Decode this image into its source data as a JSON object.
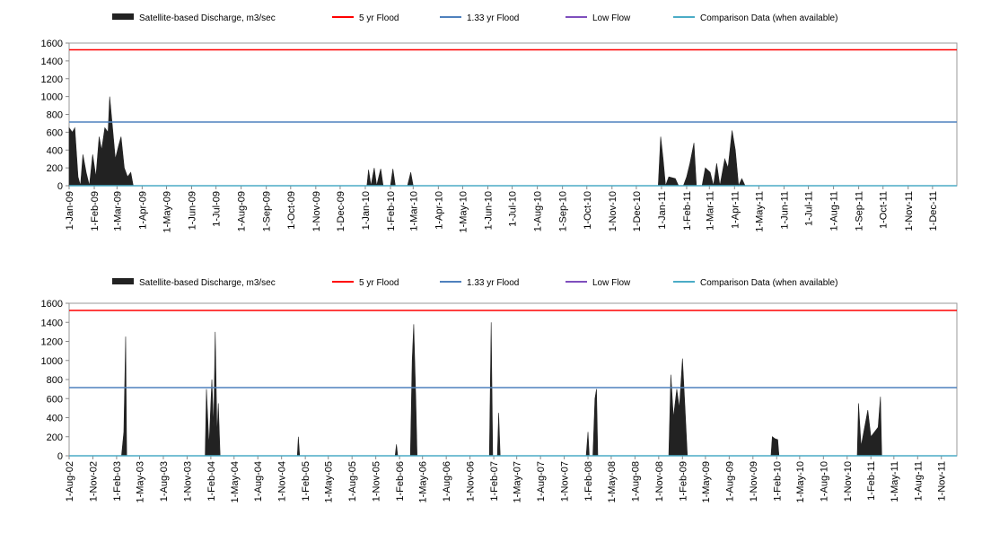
{
  "chart_data": [
    {
      "type": "area",
      "series": [
        {
          "name": "Satellite-based Discharge, m3/sec",
          "color": "#222222",
          "x": [
            "2009-01-01",
            "2009-01-05",
            "2009-01-08",
            "2009-01-12",
            "2009-01-15",
            "2009-01-18",
            "2009-01-22",
            "2009-01-26",
            "2009-01-30",
            "2009-02-03",
            "2009-02-07",
            "2009-02-10",
            "2009-02-14",
            "2009-02-18",
            "2009-02-20",
            "2009-02-23",
            "2009-02-27",
            "2009-03-03",
            "2009-03-06",
            "2009-03-10",
            "2009-03-14",
            "2009-03-18",
            "2009-03-21",
            "2010-01-03",
            "2010-01-05",
            "2010-01-08",
            "2010-01-12",
            "2010-01-15",
            "2010-01-20",
            "2010-01-23",
            "2010-02-01",
            "2010-02-04",
            "2010-02-07",
            "2010-02-22",
            "2010-02-26",
            "2010-03-01",
            "2010-12-28",
            "2010-12-31",
            "2011-01-03",
            "2011-01-06",
            "2011-01-10",
            "2011-01-18",
            "2011-01-22",
            "2011-01-28",
            "2011-02-01",
            "2011-02-05",
            "2011-02-10",
            "2011-02-13",
            "2011-02-20",
            "2011-02-24",
            "2011-03-02",
            "2011-03-06",
            "2011-03-10",
            "2011-03-14",
            "2011-03-20",
            "2011-03-24",
            "2011-03-29",
            "2011-04-02",
            "2011-04-06",
            "2011-04-10",
            "2011-04-14"
          ],
          "values": [
            650,
            600,
            650,
            100,
            0,
            350,
            150,
            0,
            350,
            100,
            550,
            400,
            650,
            600,
            1000,
            700,
            300,
            450,
            550,
            200,
            100,
            150,
            0,
            0,
            180,
            0,
            200,
            0,
            190,
            0,
            0,
            190,
            0,
            0,
            150,
            0,
            0,
            550,
            300,
            0,
            100,
            80,
            0,
            0,
            100,
            250,
            480,
            0,
            0,
            200,
            150,
            0,
            250,
            0,
            300,
            200,
            620,
            400,
            0,
            80,
            0
          ]
        },
        {
          "name": "5 yr Flood",
          "color": "#ff0000",
          "value": 1525
        },
        {
          "name": "1.33 yr Flood",
          "color": "#4f81bd",
          "value": 715
        },
        {
          "name": "Low Flow",
          "color": "#7f4fbd"
        },
        {
          "name": "Comparison Data (when available)",
          "color": "#4bacc6",
          "value": 0
        }
      ],
      "xlim": [
        "2009-01-01",
        "2011-12-31"
      ],
      "xticks": [
        {
          "value": "2009-01-01",
          "label": "1-Jan-09"
        },
        {
          "value": "2009-02-01",
          "label": "1-Feb-09"
        },
        {
          "value": "2009-03-01",
          "label": "1-Mar-09"
        },
        {
          "value": "2009-04-01",
          "label": "1-Apr-09"
        },
        {
          "value": "2009-05-01",
          "label": "1-May-09"
        },
        {
          "value": "2009-06-01",
          "label": "1-Jun-09"
        },
        {
          "value": "2009-07-01",
          "label": "1-Jul-09"
        },
        {
          "value": "2009-08-01",
          "label": "1-Aug-09"
        },
        {
          "value": "2009-09-01",
          "label": "1-Sep-09"
        },
        {
          "value": "2009-10-01",
          "label": "1-Oct-09"
        },
        {
          "value": "2009-11-01",
          "label": "1-Nov-09"
        },
        {
          "value": "2009-12-01",
          "label": "1-Dec-09"
        },
        {
          "value": "2010-01-01",
          "label": "1-Jan-10"
        },
        {
          "value": "2010-02-01",
          "label": "1-Feb-10"
        },
        {
          "value": "2010-03-01",
          "label": "1-Mar-10"
        },
        {
          "value": "2010-04-01",
          "label": "1-Apr-10"
        },
        {
          "value": "2010-05-01",
          "label": "1-May-10"
        },
        {
          "value": "2010-06-01",
          "label": "1-Jun-10"
        },
        {
          "value": "2010-07-01",
          "label": "1-Jul-10"
        },
        {
          "value": "2010-08-01",
          "label": "1-Aug-10"
        },
        {
          "value": "2010-09-01",
          "label": "1-Sep-10"
        },
        {
          "value": "2010-10-01",
          "label": "1-Oct-10"
        },
        {
          "value": "2010-11-01",
          "label": "1-Nov-10"
        },
        {
          "value": "2010-12-01",
          "label": "1-Dec-10"
        },
        {
          "value": "2011-01-01",
          "label": "1-Jan-11"
        },
        {
          "value": "2011-02-01",
          "label": "1-Feb-11"
        },
        {
          "value": "2011-03-01",
          "label": "1-Mar-11"
        },
        {
          "value": "2011-04-01",
          "label": "1-Apr-11"
        },
        {
          "value": "2011-05-01",
          "label": "1-May-11"
        },
        {
          "value": "2011-06-01",
          "label": "1-Jun-11"
        },
        {
          "value": "2011-07-01",
          "label": "1-Jul-11"
        },
        {
          "value": "2011-08-01",
          "label": "1-Aug-11"
        },
        {
          "value": "2011-09-01",
          "label": "1-Sep-11"
        },
        {
          "value": "2011-10-01",
          "label": "1-Oct-11"
        },
        {
          "value": "2011-11-01",
          "label": "1-Nov-11"
        },
        {
          "value": "2011-12-01",
          "label": "1-Dec-11"
        }
      ],
      "ylim": [
        0,
        1600
      ],
      "yticks": [
        0,
        200,
        400,
        600,
        800,
        1000,
        1200,
        1400,
        1600
      ]
    },
    {
      "type": "area",
      "series": [
        {
          "name": "Satellite-based Discharge, m3/sec",
          "color": "#222222",
          "x": [
            "2002-08-01",
            "2003-02-20",
            "2003-03-01",
            "2003-03-08",
            "2003-03-12",
            "2004-01-10",
            "2004-01-15",
            "2004-01-25",
            "2004-02-05",
            "2004-02-12",
            "2004-02-18",
            "2004-02-25",
            "2004-03-01",
            "2004-03-08",
            "2005-01-01",
            "2005-01-05",
            "2005-01-10",
            "2006-01-15",
            "2006-01-20",
            "2006-01-25",
            "2006-03-15",
            "2006-03-22",
            "2006-03-28",
            "2006-04-05",
            "2006-04-10",
            "2007-01-15",
            "2007-01-22",
            "2007-01-28",
            "2007-02-15",
            "2007-02-20",
            "2007-02-26",
            "2008-01-25",
            "2008-02-01",
            "2008-02-06",
            "2008-02-20",
            "2008-02-28",
            "2008-03-05",
            "2008-03-10",
            "2008-12-10",
            "2008-12-18",
            "2008-12-28",
            "2009-01-10",
            "2009-01-20",
            "2009-02-01",
            "2009-02-10",
            "2009-02-20",
            "2010-01-10",
            "2010-01-15",
            "2010-01-25",
            "2010-02-05",
            "2010-02-10",
            "2010-12-10",
            "2010-12-15",
            "2010-12-25",
            "2011-01-20",
            "2011-02-01",
            "2011-02-15",
            "2011-03-01",
            "2011-03-10",
            "2011-03-15",
            "2011-12-31"
          ],
          "values": [
            0,
            0,
            250,
            1250,
            0,
            0,
            700,
            100,
            800,
            300,
            1300,
            200,
            550,
            0,
            0,
            200,
            0,
            0,
            120,
            0,
            0,
            1000,
            1380,
            600,
            0,
            0,
            1400,
            0,
            0,
            450,
            0,
            0,
            250,
            0,
            0,
            600,
            700,
            0,
            0,
            850,
            400,
            700,
            500,
            1020,
            550,
            0,
            0,
            200,
            180,
            170,
            0,
            0,
            550,
            100,
            480,
            200,
            250,
            300,
            620,
            0,
            0
          ]
        },
        {
          "name": "5 yr Flood",
          "color": "#ff0000",
          "value": 1525
        },
        {
          "name": "1.33 yr Flood",
          "color": "#4f81bd",
          "value": 715
        },
        {
          "name": "Low Flow",
          "color": "#7f4fbd"
        },
        {
          "name": "Comparison Data (when available)",
          "color": "#4bacc6",
          "value": 0
        }
      ],
      "xlim": [
        "2002-08-01",
        "2011-12-31"
      ],
      "xticks": [
        {
          "value": "2002-08-01",
          "label": "1-Aug-02"
        },
        {
          "value": "2002-11-01",
          "label": "1-Nov-02"
        },
        {
          "value": "2003-02-01",
          "label": "1-Feb-03"
        },
        {
          "value": "2003-05-01",
          "label": "1-May-03"
        },
        {
          "value": "2003-08-01",
          "label": "1-Aug-03"
        },
        {
          "value": "2003-11-01",
          "label": "1-Nov-03"
        },
        {
          "value": "2004-02-01",
          "label": "1-Feb-04"
        },
        {
          "value": "2004-05-01",
          "label": "1-May-04"
        },
        {
          "value": "2004-08-01",
          "label": "1-Aug-04"
        },
        {
          "value": "2004-11-01",
          "label": "1-Nov-04"
        },
        {
          "value": "2005-02-01",
          "label": "1-Feb-05"
        },
        {
          "value": "2005-05-01",
          "label": "1-May-05"
        },
        {
          "value": "2005-08-01",
          "label": "1-Aug-05"
        },
        {
          "value": "2005-11-01",
          "label": "1-Nov-05"
        },
        {
          "value": "2006-02-01",
          "label": "1-Feb-06"
        },
        {
          "value": "2006-05-01",
          "label": "1-May-06"
        },
        {
          "value": "2006-08-01",
          "label": "1-Aug-06"
        },
        {
          "value": "2006-11-01",
          "label": "1-Nov-06"
        },
        {
          "value": "2007-02-01",
          "label": "1-Feb-07"
        },
        {
          "value": "2007-05-01",
          "label": "1-May-07"
        },
        {
          "value": "2007-08-01",
          "label": "1-Aug-07"
        },
        {
          "value": "2007-11-01",
          "label": "1-Nov-07"
        },
        {
          "value": "2008-02-01",
          "label": "1-Feb-08"
        },
        {
          "value": "2008-05-01",
          "label": "1-May-08"
        },
        {
          "value": "2008-08-01",
          "label": "1-Aug-08"
        },
        {
          "value": "2008-11-01",
          "label": "1-Nov-08"
        },
        {
          "value": "2009-02-01",
          "label": "1-Feb-09"
        },
        {
          "value": "2009-05-01",
          "label": "1-May-09"
        },
        {
          "value": "2009-08-01",
          "label": "1-Aug-09"
        },
        {
          "value": "2009-11-01",
          "label": "1-Nov-09"
        },
        {
          "value": "2010-02-01",
          "label": "1-Feb-10"
        },
        {
          "value": "2010-05-01",
          "label": "1-May-10"
        },
        {
          "value": "2010-08-01",
          "label": "1-Aug-10"
        },
        {
          "value": "2010-11-01",
          "label": "1-Nov-10"
        },
        {
          "value": "2011-02-01",
          "label": "1-Feb-11"
        },
        {
          "value": "2011-05-01",
          "label": "1-May-11"
        },
        {
          "value": "2011-08-01",
          "label": "1-Aug-11"
        },
        {
          "value": "2011-11-01",
          "label": "1-Nov-11"
        }
      ],
      "ylim": [
        0,
        1600
      ],
      "yticks": [
        0,
        200,
        400,
        600,
        800,
        1000,
        1200,
        1400,
        1600
      ]
    }
  ]
}
